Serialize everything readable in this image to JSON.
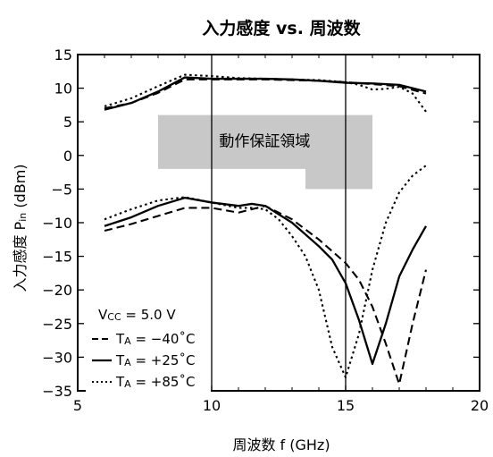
{
  "chart_data": {
    "type": "line",
    "title": "入力感度 vs. 周波数",
    "xlabel": "周波数  f (GHz)",
    "ylabel": "入力感度  Pin (dBm)",
    "ylabel_main": "入力感度  P",
    "ylabel_sub": "in",
    "ylabel_unit": " (dBm)",
    "xlim": [
      5,
      20
    ],
    "ylim": [
      -35,
      15
    ],
    "xticks": [
      5,
      10,
      15,
      20
    ],
    "yticks": [
      15,
      10,
      5,
      0,
      -5,
      -10,
      -15,
      -20,
      -25,
      -30,
      -35
    ],
    "ytick_labels": [
      "15",
      "10",
      "5",
      "0",
      "−5",
      "−10",
      "−15",
      "−20",
      "−25",
      "−30",
      "−35"
    ],
    "grid": "major-x-only",
    "region": {
      "label": "動作保証領域",
      "color": "#c8c8c8",
      "polygon": [
        [
          8,
          6
        ],
        [
          16,
          6
        ],
        [
          16,
          -5
        ],
        [
          13.5,
          -5
        ],
        [
          13.5,
          -2
        ],
        [
          8,
          -2
        ]
      ]
    },
    "legend": {
      "placement": "bottom-left",
      "header_main": "V",
      "header_sub": "CC",
      "header_rest": " = 5.0 V",
      "entries": [
        {
          "main": "T",
          "sub": "A",
          "rest": " = −40˚C"
        },
        {
          "main": "T",
          "sub": "A",
          "rest": " = +25˚C"
        },
        {
          "main": "T",
          "sub": "A",
          "rest": " = +85˚C"
        }
      ]
    },
    "series": [
      {
        "name": "TA = −40˚C",
        "style": "dashed",
        "upper": {
          "x": [
            6,
            7,
            8,
            9,
            10,
            11,
            12,
            13,
            14,
            15,
            16,
            17,
            18
          ],
          "y": [
            7,
            7.8,
            9.3,
            11.3,
            11.3,
            11.3,
            11.3,
            11.2,
            11.1,
            10.9,
            10.6,
            10.3,
            9.2
          ]
        },
        "lower": {
          "x": [
            6,
            7,
            8,
            9,
            10,
            11,
            11.5,
            12,
            13,
            14,
            15,
            15.5,
            16,
            16.5,
            17,
            17.5,
            18
          ],
          "y": [
            -11.2,
            -10.2,
            -9,
            -7.8,
            -7.8,
            -8.5,
            -8,
            -7.5,
            -9.5,
            -12.5,
            -16,
            -18.5,
            -22.5,
            -28,
            -34,
            -25,
            -17
          ]
        }
      },
      {
        "name": "TA = +25˚C",
        "style": "solid",
        "upper": {
          "x": [
            6,
            7,
            8,
            9,
            10,
            11,
            12,
            13,
            14,
            15,
            16,
            17,
            18
          ],
          "y": [
            6.8,
            7.8,
            9.5,
            11.6,
            11.4,
            11.4,
            11.4,
            11.3,
            11.1,
            10.8,
            10.7,
            10.5,
            9.5
          ]
        },
        "lower": {
          "x": [
            6,
            7,
            8,
            9,
            10,
            11,
            11.5,
            12,
            13,
            14,
            14.5,
            15,
            15.5,
            16,
            16.5,
            17,
            17.5,
            18
          ],
          "y": [
            -10.5,
            -9.2,
            -7.5,
            -6.3,
            -7,
            -7.5,
            -7.2,
            -7.5,
            -10,
            -13.5,
            -15.5,
            -19,
            -24.5,
            -31,
            -25,
            -18,
            -14,
            -10.5
          ]
        }
      },
      {
        "name": "TA = +85˚C",
        "style": "dotted",
        "upper": {
          "x": [
            6,
            7,
            8,
            9,
            10,
            11,
            12,
            13,
            14,
            15,
            15.5,
            16,
            16.5,
            17,
            17.5,
            18
          ],
          "y": [
            7.3,
            8.5,
            10.3,
            12,
            11.8,
            11.5,
            11.4,
            11.3,
            11.2,
            10.9,
            10.5,
            9.8,
            9.9,
            10.2,
            9.2,
            6.5
          ]
        },
        "lower": {
          "x": [
            6,
            7,
            8,
            9,
            10,
            11,
            11.5,
            12,
            12.5,
            13,
            13.5,
            14,
            14.5,
            15,
            15.5,
            16,
            16.5,
            17,
            17.5,
            18
          ],
          "y": [
            -9.5,
            -8,
            -6.7,
            -6.2,
            -7,
            -7.8,
            -7.8,
            -8,
            -9.5,
            -12,
            -15,
            -20,
            -28.5,
            -33,
            -26.5,
            -17,
            -10,
            -5.5,
            -3,
            -1.5
          ]
        }
      }
    ]
  }
}
